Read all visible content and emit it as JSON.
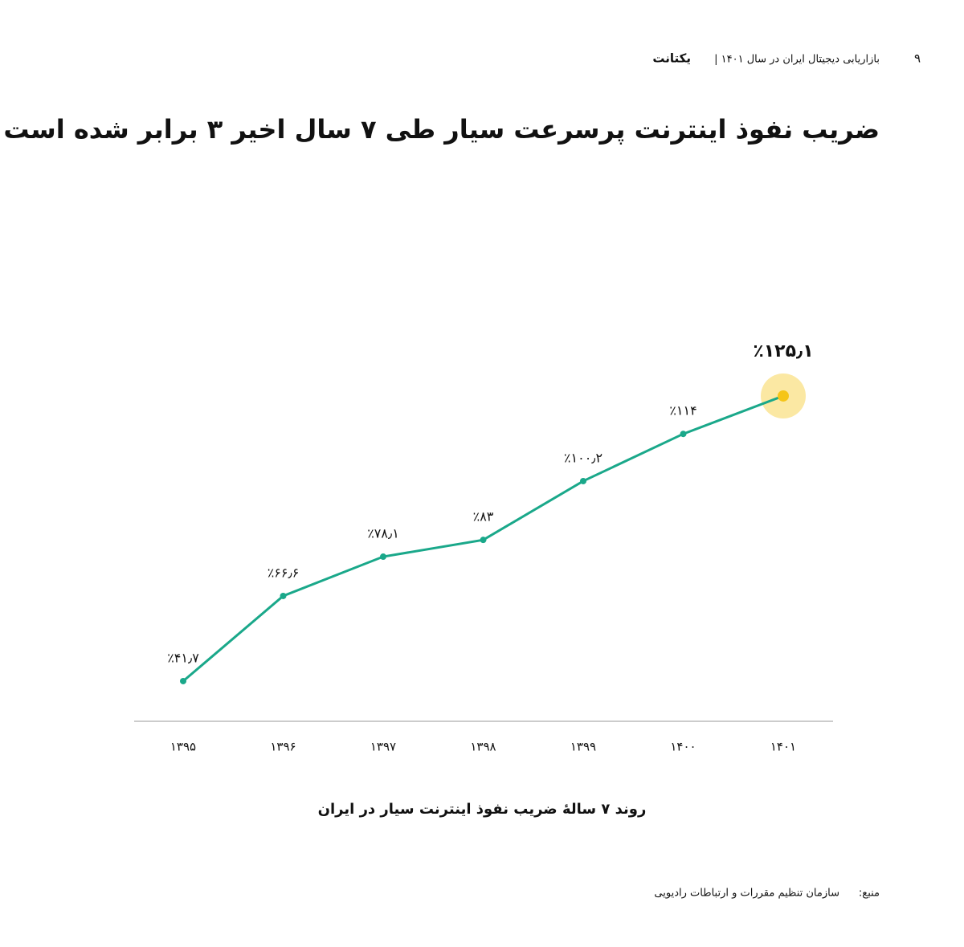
{
  "header": {
    "page_number": "۹",
    "report": "بازاریابی دیجیتال ایران در سال ۱۴۰۱ |",
    "logo": "یکتانت"
  },
  "chart_data": {
    "type": "line",
    "title": "ضریب نفوذ اینترنت پرسرعت سیار طی ۷ سال اخیر ۳ برابر شده است",
    "caption": "روند ۷ سالهٔ ضریب نفوذ اینترنت سیار در ایران",
    "categories": [
      "۱۳۹۵",
      "۱۳۹۶",
      "۱۳۹۷",
      "۱۳۹۸",
      "۱۳۹۹",
      "۱۴۰۰",
      "۱۴۰۱"
    ],
    "values": [
      41.7,
      66.6,
      78.1,
      83,
      100.2,
      114,
      125.1
    ],
    "value_labels": [
      "٪۴۱٫۷",
      "٪۶۶٫۶",
      "٪۷۸٫۱",
      "٪۸۳",
      "٪۱۰۰٫۲",
      "٪۱۱۴",
      "٪۱۲۵٫۱"
    ],
    "color": "#1aa88a",
    "highlight_color": "#f5c518"
  },
  "source": {
    "label": "منبع:",
    "text": "سازمان تنظیم مقررات و ارتباطات رادیویی"
  }
}
